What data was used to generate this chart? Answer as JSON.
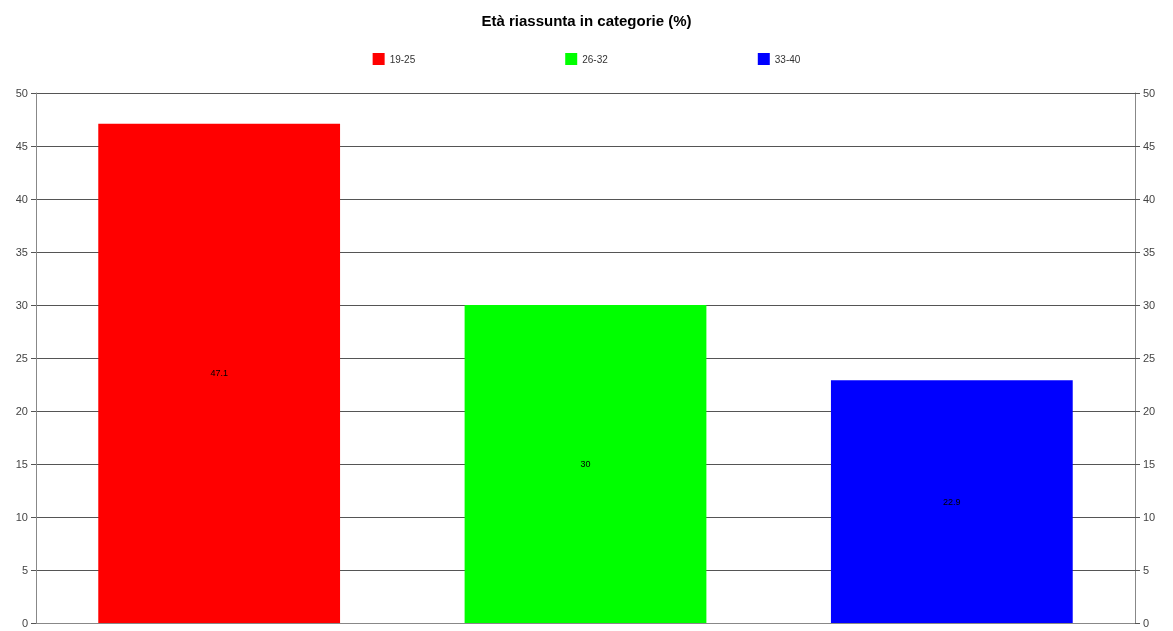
{
  "chart_data": {
    "type": "bar",
    "title": "Età riassunta in categorie (%)",
    "categories": [
      null,
      null,
      null
    ],
    "series": [
      {
        "name": "19-25",
        "color": "#ff0000",
        "values": [
          47.1,
          null,
          null
        ]
      },
      {
        "name": "26-32",
        "color": "#00ff00",
        "values": [
          null,
          30,
          null
        ]
      },
      {
        "name": "33-40",
        "color": "#0000ff",
        "values": [
          null,
          null,
          22.9
        ]
      }
    ],
    "ylim": [
      0,
      50
    ],
    "yticks": [
      0,
      5,
      10,
      15,
      20,
      25,
      30,
      35,
      40,
      45,
      50
    ],
    "y2lim": [
      0,
      50
    ],
    "y2ticks": [
      0,
      5,
      10,
      15,
      20,
      25,
      30,
      35,
      40,
      45,
      50
    ],
    "grid": "y",
    "legend": "top",
    "data_labels": true
  }
}
